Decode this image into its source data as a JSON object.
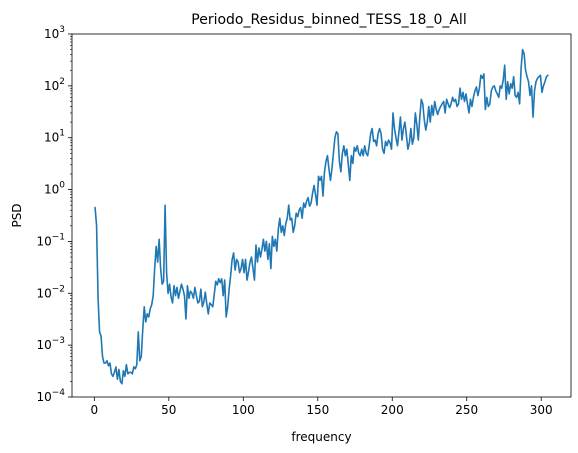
{
  "chart_data": {
    "type": "line",
    "title": "Periodo_Residus_binned_TESS_18_0_All",
    "xlabel": "frequency",
    "ylabel": "PSD",
    "xlim": [
      -15,
      320
    ],
    "ylim": [
      0.0001,
      1000
    ],
    "yscale": "log",
    "grid": false,
    "x_ticks": [
      0,
      50,
      100,
      150,
      200,
      250,
      300
    ],
    "x_tick_labels": [
      "0",
      "50",
      "100",
      "150",
      "200",
      "250",
      "300"
    ],
    "y_ticks": [
      0.0001,
      0.001,
      0.01,
      0.1,
      1,
      10,
      100,
      1000
    ],
    "y_tick_exponents": [
      "−4",
      "−3",
      "−2",
      "−1",
      "0",
      "1",
      "2",
      "3"
    ],
    "series": [
      {
        "color": "#1f77b4",
        "x": [
          0.5,
          1.5,
          2.5,
          3.5,
          4.5,
          5.5,
          6.5,
          7.5,
          8.5,
          9.5,
          10.5,
          11.5,
          12.5,
          13.5,
          14.5,
          15.5,
          16.5,
          17.5,
          18.5,
          19.5,
          20.5,
          21.5,
          22.5,
          23.5,
          24.5,
          25.5,
          26.5,
          27.5,
          28.5,
          29.5,
          30.5,
          31.5,
          32.5,
          33.5,
          34.5,
          35.5,
          36.5,
          37.5,
          38.5,
          39.5,
          40.5,
          41.5,
          42.5,
          43.5,
          44.5,
          45.5,
          46.5,
          47.5,
          48.5,
          49.5,
          50.5,
          51.5,
          52.5,
          53.5,
          54.5,
          55.5,
          56.5,
          57.5,
          58.5,
          59.5,
          60.5,
          61.5,
          62.5,
          63.5,
          64.5,
          65.5,
          66.5,
          67.5,
          68.5,
          69.5,
          70.5,
          71.5,
          72.5,
          73.5,
          74.5,
          75.5,
          76.5,
          77.5,
          78.5,
          79.5,
          80.5,
          81.5,
          82.5,
          83.5,
          84.5,
          85.5,
          86.5,
          87.5,
          88.5,
          89.5,
          90.5,
          91.5,
          92.5,
          93.5,
          94.5,
          95.5,
          96.5,
          97.5,
          98.5,
          99.5,
          100.5,
          101.5,
          102.5,
          103.5,
          104.5,
          105.5,
          106.5,
          107.5,
          108.5,
          109.5,
          110.5,
          111.5,
          112.5,
          113.5,
          114.5,
          115.5,
          116.5,
          117.5,
          118.5,
          119.5,
          120.5,
          121.5,
          122.5,
          123.5,
          124.5,
          125.5,
          126.5,
          127.5,
          128.5,
          129.5,
          130.5,
          131.5,
          132.5,
          133.5,
          134.5,
          135.5,
          136.5,
          137.5,
          138.5,
          139.5,
          140.5,
          141.5,
          142.5,
          143.5,
          144.5,
          145.5,
          146.5,
          147.5,
          148.5,
          149.5,
          150.5,
          151.5,
          152.5,
          153.5,
          154.5,
          155.5,
          156.5,
          157.5,
          158.5,
          159.5,
          160.5,
          161.5,
          162.5,
          163.5,
          164.5,
          165.5,
          166.5,
          167.5,
          168.5,
          169.5,
          170.5,
          171.5,
          172.5,
          173.5,
          174.5,
          175.5,
          176.5,
          177.5,
          178.5,
          179.5,
          180.5,
          181.5,
          182.5,
          183.5,
          184.5,
          185.5,
          186.5,
          187.5,
          188.5,
          189.5,
          190.5,
          191.5,
          192.5,
          193.5,
          194.5,
          195.5,
          196.5,
          197.5,
          198.5,
          199.5,
          200.5,
          201.5,
          202.5,
          203.5,
          204.5,
          205.5,
          206.5,
          207.5,
          208.5,
          209.5,
          210.5,
          211.5,
          212.5,
          213.5,
          214.5,
          215.5,
          216.5,
          217.5,
          218.5,
          219.5,
          220.5,
          221.5,
          222.5,
          223.5,
          224.5,
          225.5,
          226.5,
          227.5,
          228.5,
          229.5,
          230.5,
          231.5,
          232.5,
          233.5,
          234.5,
          235.5,
          236.5,
          237.5,
          238.5,
          239.5,
          240.5,
          241.5,
          242.5,
          243.5,
          244.5,
          245.5,
          246.5,
          247.5,
          248.5,
          249.5,
          250.5,
          251.5,
          252.5,
          253.5,
          254.5,
          255.5,
          256.5,
          257.5,
          258.5,
          259.5,
          260.5,
          261.5,
          262.5,
          263.5,
          264.5,
          265.5,
          266.5,
          267.5,
          268.5,
          269.5,
          270.5,
          271.5,
          272.5,
          273.5,
          274.5,
          275.5,
          276.5,
          277.5,
          278.5,
          279.5,
          280.5,
          281.5,
          282.5,
          283.5,
          284.5,
          285.5,
          286.5,
          287.5,
          288.5,
          289.5,
          290.5,
          291.5,
          292.5,
          293.5,
          294.5,
          295.5,
          296.5,
          297.5,
          298.5,
          299.5,
          300.5,
          301.5,
          302.5,
          303.5,
          304.5
        ],
        "y": [
          0.45,
          0.2,
          0.008,
          0.0018,
          0.0015,
          0.0006,
          0.00045,
          0.00045,
          0.0005,
          0.0004,
          0.00045,
          0.00028,
          0.00025,
          0.0003,
          0.00038,
          0.00022,
          0.00034,
          0.0002,
          0.00018,
          0.00032,
          0.00025,
          0.00042,
          0.00028,
          0.0003,
          0.0003,
          0.00028,
          0.00038,
          0.00035,
          0.00042,
          0.0018,
          0.0005,
          0.0006,
          0.002,
          0.0055,
          0.0028,
          0.004,
          0.0035,
          0.005,
          0.006,
          0.009,
          0.03,
          0.08,
          0.04,
          0.11,
          0.03,
          0.015,
          0.017,
          0.5,
          0.025,
          0.01,
          0.015,
          0.0085,
          0.0065,
          0.014,
          0.009,
          0.013,
          0.008,
          0.011,
          0.015,
          0.012,
          0.009,
          0.0032,
          0.014,
          0.008,
          0.011,
          0.01,
          0.008,
          0.013,
          0.009,
          0.0065,
          0.007,
          0.012,
          0.0055,
          0.0068,
          0.0105,
          0.0062,
          0.004,
          0.0065,
          0.006,
          0.0055,
          0.0095,
          0.017,
          0.0145,
          0.019,
          0.016,
          0.019,
          0.009,
          0.018,
          0.0035,
          0.0055,
          0.012,
          0.022,
          0.045,
          0.06,
          0.028,
          0.045,
          0.04,
          0.025,
          0.03,
          0.045,
          0.025,
          0.045,
          0.018,
          0.026,
          0.04,
          0.05,
          0.03,
          0.018,
          0.085,
          0.04,
          0.075,
          0.05,
          0.07,
          0.11,
          0.065,
          0.1,
          0.045,
          0.09,
          0.03,
          0.125,
          0.08,
          0.11,
          0.065,
          0.17,
          0.28,
          0.15,
          0.2,
          0.13,
          0.22,
          0.28,
          0.5,
          0.26,
          0.28,
          0.15,
          0.2,
          0.35,
          0.3,
          0.4,
          0.45,
          0.28,
          0.55,
          0.45,
          0.6,
          0.7,
          0.48,
          0.55,
          0.85,
          1.2,
          0.8,
          0.5,
          1.8,
          1.5,
          1.8,
          0.75,
          2.2,
          3.5,
          4.5,
          2.5,
          1.5,
          2.5,
          5,
          10,
          13,
          12,
          3.5,
          2.2,
          5,
          7,
          4.5,
          6,
          3,
          1.5,
          4.5,
          3.2,
          6.5,
          5.5,
          7,
          5,
          4.5,
          6,
          4.5,
          7,
          5,
          4.5,
          7,
          12,
          15,
          8.5,
          9,
          7,
          12,
          15,
          12,
          6,
          5,
          8.5,
          7,
          9,
          8,
          6,
          30,
          15,
          10,
          7,
          13,
          25,
          9,
          15,
          20,
          11,
          6,
          8,
          15,
          7.5,
          10,
          30,
          18,
          9,
          25,
          55,
          45,
          22,
          14,
          20,
          40,
          20,
          42,
          27,
          50,
          35,
          28,
          35,
          40,
          45,
          50,
          30,
          55,
          45,
          38,
          45,
          60,
          50,
          55,
          40,
          45,
          90,
          55,
          75,
          50,
          70,
          45,
          30,
          55,
          40,
          60,
          80,
          95,
          65,
          90,
          160,
          140,
          170,
          35,
          60,
          40,
          45,
          80,
          95,
          100,
          80,
          70,
          60,
          100,
          90,
          130,
          250,
          55,
          120,
          70,
          110,
          90,
          150,
          65,
          60,
          75,
          45,
          220,
          500,
          420,
          200,
          150,
          120,
          65,
          100,
          25,
          80,
          120,
          140,
          150,
          160,
          75,
          100,
          120,
          150,
          160
        ]
      }
    ]
  }
}
